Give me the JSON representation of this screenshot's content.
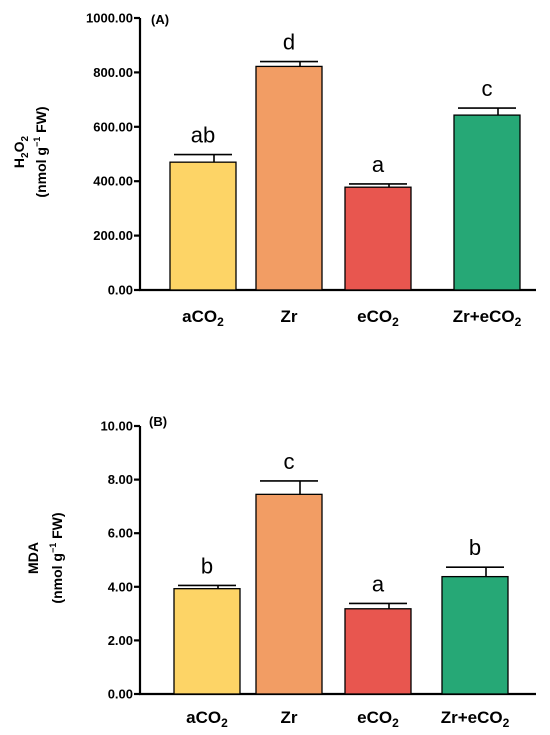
{
  "chart_data": [
    {
      "type": "bar",
      "panel_label": "(A)",
      "ylabel_line1_main": "H",
      "ylabel_line1_sub1": "2",
      "ylabel_line1_mid": "O",
      "ylabel_line1_sub2": "2",
      "ylabel_line2_pre": "(nmol g",
      "ylabel_line2_sup": "−1",
      "ylabel_line2_post": " FW)",
      "ylim": [
        0,
        1000
      ],
      "yticks": [
        "0.00",
        "200.00",
        "400.00",
        "600.00",
        "800.00",
        "1000.00"
      ],
      "categories": [
        {
          "main": "aCO",
          "sub": "2"
        },
        {
          "main": "Zr",
          "sub": ""
        },
        {
          "main": "eCO",
          "sub": "2"
        },
        {
          "main": "Zr+eCO",
          "sub": "2"
        }
      ],
      "values": [
        470,
        822,
        378,
        643
      ],
      "errors": [
        28,
        18,
        12,
        26
      ],
      "letters": [
        "ab",
        "d",
        "a",
        "c"
      ],
      "colors": [
        "#FDD466",
        "#F29D64",
        "#E8564F",
        "#26A876"
      ]
    },
    {
      "type": "bar",
      "panel_label": "(B)",
      "ylabel_line1": "MDA",
      "ylabel_line2_pre": "(nmol g",
      "ylabel_line2_sup": "−1",
      "ylabel_line2_post": " FW)",
      "ylim": [
        0,
        10
      ],
      "yticks": [
        "0.00",
        "2.00",
        "4.00",
        "6.00",
        "8.00",
        "10.00"
      ],
      "categories": [
        {
          "main": "aCO",
          "sub": "2"
        },
        {
          "main": "Zr",
          "sub": ""
        },
        {
          "main": "eCO",
          "sub": "2"
        },
        {
          "main": "Zr+eCO",
          "sub": "2"
        }
      ],
      "values": [
        3.93,
        7.45,
        3.18,
        4.38
      ],
      "errors": [
        0.12,
        0.5,
        0.2,
        0.35
      ],
      "letters": [
        "b",
        "c",
        "a",
        "b"
      ],
      "colors": [
        "#FDD466",
        "#F29D64",
        "#E8564F",
        "#26A876"
      ]
    }
  ]
}
